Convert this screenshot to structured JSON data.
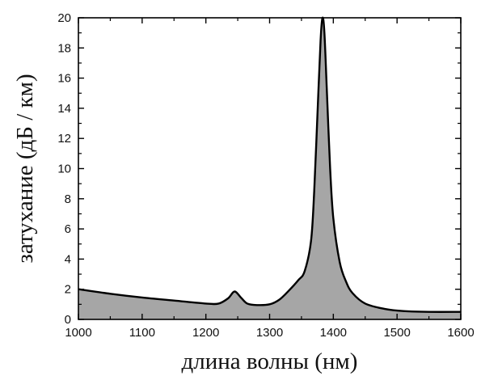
{
  "chart_data": {
    "type": "area",
    "title": "",
    "xlabel": "длина волны (нм)",
    "ylabel": "затухание (дБ / км)",
    "xlim": [
      1000,
      1600
    ],
    "ylim": [
      0,
      20
    ],
    "x_ticks": [
      1000,
      1100,
      1200,
      1300,
      1400,
      1500,
      1600
    ],
    "y_ticks": [
      0,
      2,
      4,
      6,
      8,
      10,
      12,
      14,
      16,
      18,
      20
    ],
    "grid": false,
    "legend": "none",
    "fill_color": "#a6a6a6",
    "line_color": "#000000",
    "series": [
      {
        "x": [
          1000,
          1050,
          1100,
          1150,
          1200,
          1220,
          1235,
          1245,
          1255,
          1265,
          1280,
          1300,
          1315,
          1330,
          1345,
          1355,
          1365,
          1370,
          1375,
          1380,
          1383,
          1386,
          1390,
          1395,
          1400,
          1410,
          1420,
          1430,
          1450,
          1480,
          1510,
          1550,
          1600
        ],
        "y": [
          2.0,
          1.7,
          1.45,
          1.25,
          1.05,
          1.05,
          1.4,
          1.85,
          1.45,
          1.05,
          0.95,
          1.0,
          1.3,
          1.9,
          2.6,
          3.2,
          5.2,
          8.5,
          13.5,
          18.5,
          20.0,
          19.0,
          15.0,
          10.0,
          6.7,
          3.8,
          2.5,
          1.75,
          1.05,
          0.7,
          0.55,
          0.5,
          0.5
        ]
      }
    ]
  }
}
